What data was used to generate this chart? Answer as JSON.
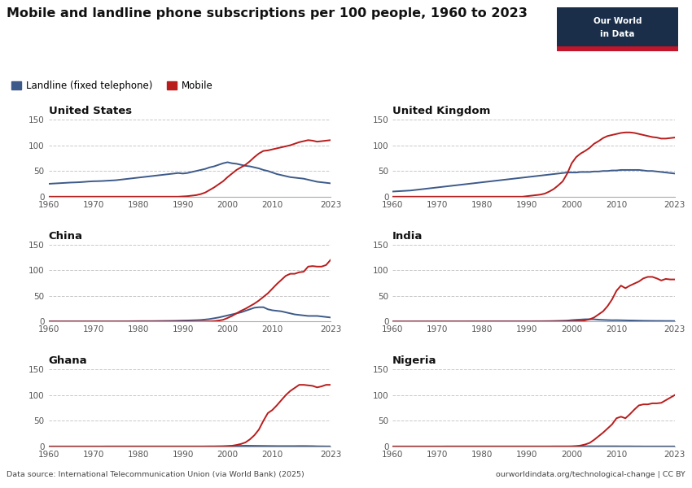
{
  "title": "Mobile and landline phone subscriptions per 100 people, 1960 to 2023",
  "datasource": "Data source: International Telecommunication Union (via World Bank) (2025)",
  "url": "ourworldindata.org/technological-change | CC BY",
  "legend_landline": "Landline (fixed telephone)",
  "legend_mobile": "Mobile",
  "landline_color": "#3d5a8a",
  "mobile_color": "#b91c1c",
  "bg_color": "#ffffff",
  "grid_color": "#c8c8c8",
  "logo_bg": "#1a2e4a",
  "logo_red": "#c0152a",
  "ylim": [
    0,
    150
  ],
  "yticks": [
    0,
    50,
    100,
    150
  ],
  "xticks": [
    1960,
    1970,
    1980,
    1990,
    2000,
    2010,
    2023
  ],
  "countries": [
    "United States",
    "United Kingdom",
    "China",
    "India",
    "Ghana",
    "Nigeria"
  ],
  "years": [
    1960,
    1961,
    1962,
    1963,
    1964,
    1965,
    1966,
    1967,
    1968,
    1969,
    1970,
    1971,
    1972,
    1973,
    1974,
    1975,
    1976,
    1977,
    1978,
    1979,
    1980,
    1981,
    1982,
    1983,
    1984,
    1985,
    1986,
    1987,
    1988,
    1989,
    1990,
    1991,
    1992,
    1993,
    1994,
    1995,
    1996,
    1997,
    1998,
    1999,
    2000,
    2001,
    2002,
    2003,
    2004,
    2005,
    2006,
    2007,
    2008,
    2009,
    2010,
    2011,
    2012,
    2013,
    2014,
    2015,
    2016,
    2017,
    2018,
    2019,
    2020,
    2021,
    2022,
    2023
  ],
  "data": {
    "United States": {
      "landline": [
        25,
        25.5,
        26,
        26.5,
        27,
        27.5,
        27.8,
        28.2,
        28.8,
        29.5,
        30,
        30.2,
        30.5,
        31,
        31.5,
        32,
        33,
        34,
        35,
        36,
        37,
        38,
        39,
        40,
        41,
        42,
        43,
        44,
        45,
        46,
        45,
        46,
        48,
        50,
        52,
        54,
        57,
        59,
        62,
        65,
        67,
        65,
        64,
        62,
        60,
        59,
        57,
        55,
        52,
        50,
        47,
        44,
        42,
        40,
        38,
        37,
        36,
        35,
        33,
        31,
        29,
        28,
        27,
        26
      ],
      "mobile": [
        0,
        0,
        0,
        0,
        0,
        0,
        0,
        0,
        0,
        0,
        0,
        0,
        0,
        0,
        0,
        0,
        0,
        0,
        0,
        0,
        0,
        0,
        0,
        0,
        0,
        0,
        0,
        0,
        0,
        0,
        0.5,
        1,
        2,
        3,
        5,
        8,
        13,
        18,
        24,
        30,
        38,
        45,
        52,
        57,
        62,
        69,
        77,
        84,
        89,
        90,
        92,
        94,
        96,
        98,
        100,
        103,
        106,
        108,
        110,
        109,
        107,
        108,
        109,
        110
      ]
    },
    "United Kingdom": {
      "landline": [
        10,
        10.5,
        11,
        11.5,
        12,
        13,
        14,
        15,
        16,
        17,
        18,
        19,
        20,
        21,
        22,
        23,
        24,
        25,
        26,
        27,
        28,
        29,
        30,
        31,
        32,
        33,
        34,
        35,
        36,
        37,
        38,
        39,
        40,
        41,
        42,
        43,
        44,
        45,
        46,
        47,
        47,
        47,
        48,
        48,
        48,
        49,
        49,
        50,
        50,
        51,
        51,
        52,
        52,
        52,
        52,
        52,
        51,
        50,
        50,
        49,
        48,
        47,
        46,
        45
      ],
      "mobile": [
        0,
        0,
        0,
        0,
        0,
        0,
        0,
        0,
        0,
        0,
        0,
        0,
        0,
        0,
        0,
        0,
        0,
        0,
        0,
        0,
        0,
        0,
        0,
        0,
        0,
        0,
        0,
        0,
        0,
        0,
        1,
        2,
        3,
        4,
        6,
        10,
        15,
        22,
        30,
        45,
        65,
        77,
        84,
        89,
        95,
        103,
        108,
        114,
        118,
        120,
        122,
        124,
        125,
        125,
        124,
        122,
        120,
        118,
        116,
        115,
        113,
        113,
        114,
        115
      ]
    },
    "China": {
      "landline": [
        0.5,
        0.5,
        0.5,
        0.5,
        0.5,
        0.5,
        0.5,
        0.5,
        0.5,
        0.5,
        0.5,
        0.5,
        0.5,
        0.5,
        0.5,
        0.5,
        0.6,
        0.6,
        0.7,
        0.8,
        0.9,
        1.0,
        1.0,
        1.0,
        1.1,
        1.2,
        1.3,
        1.4,
        1.5,
        1.7,
        2.0,
        2.2,
        2.5,
        2.8,
        3.2,
        4.0,
        5.0,
        6.5,
        8.0,
        10.0,
        12,
        14,
        16,
        18,
        21,
        24,
        27,
        28,
        28,
        24,
        22,
        21,
        20,
        18,
        16,
        14,
        13,
        12,
        11,
        11,
        11,
        10,
        9,
        8
      ],
      "mobile": [
        0,
        0,
        0,
        0,
        0,
        0,
        0,
        0,
        0,
        0,
        0,
        0,
        0,
        0,
        0,
        0,
        0,
        0,
        0,
        0,
        0,
        0,
        0,
        0,
        0,
        0,
        0,
        0,
        0,
        0,
        0,
        0,
        0,
        0,
        0.1,
        0.2,
        0.5,
        1.0,
        2.0,
        3.5,
        7,
        11,
        16,
        21,
        25,
        30,
        35,
        41,
        48,
        55,
        64,
        73,
        81,
        89,
        93,
        93,
        96,
        97,
        107,
        108,
        107,
        107,
        110,
        120
      ]
    },
    "India": {
      "landline": [
        0.3,
        0.3,
        0.3,
        0.3,
        0.3,
        0.4,
        0.4,
        0.4,
        0.4,
        0.5,
        0.5,
        0.5,
        0.5,
        0.5,
        0.5,
        0.5,
        0.5,
        0.6,
        0.6,
        0.6,
        0.6,
        0.7,
        0.7,
        0.7,
        0.7,
        0.7,
        0.7,
        0.7,
        0.7,
        0.7,
        0.7,
        0.7,
        0.8,
        0.8,
        0.9,
        1.0,
        1.2,
        1.4,
        1.7,
        2.0,
        2.9,
        3.5,
        4.0,
        4.5,
        4.6,
        4.5,
        3.7,
        3.3,
        3.0,
        2.7,
        2.8,
        2.6,
        2.4,
        2.2,
        2.0,
        1.8,
        1.6,
        1.5,
        1.4,
        1.3,
        1.3,
        1.2,
        1.2,
        1.1
      ],
      "mobile": [
        0,
        0,
        0,
        0,
        0,
        0,
        0,
        0,
        0,
        0,
        0,
        0,
        0,
        0,
        0,
        0,
        0,
        0,
        0,
        0,
        0,
        0,
        0,
        0,
        0,
        0,
        0,
        0,
        0,
        0,
        0,
        0,
        0,
        0,
        0,
        0.1,
        0.1,
        0.2,
        0.2,
        0.3,
        0.4,
        0.7,
        1.2,
        2.5,
        4.5,
        8,
        14,
        20,
        30,
        43,
        60,
        70,
        65,
        70,
        74,
        78,
        84,
        87,
        87,
        84,
        80,
        83,
        82,
        82
      ]
    },
    "Ghana": {
      "landline": [
        0.2,
        0.2,
        0.2,
        0.2,
        0.2,
        0.2,
        0.2,
        0.2,
        0.2,
        0.2,
        0.2,
        0.2,
        0.2,
        0.3,
        0.3,
        0.3,
        0.3,
        0.3,
        0.3,
        0.3,
        0.3,
        0.3,
        0.3,
        0.3,
        0.3,
        0.3,
        0.3,
        0.3,
        0.3,
        0.3,
        0.3,
        0.3,
        0.3,
        0.3,
        0.3,
        0.3,
        0.4,
        0.4,
        0.5,
        0.5,
        0.7,
        1.0,
        1.2,
        1.4,
        1.6,
        1.5,
        1.4,
        1.3,
        1.2,
        1.1,
        1.0,
        0.9,
        0.9,
        0.9,
        0.9,
        0.9,
        1.0,
        1.0,
        0.9,
        0.8,
        0.5,
        0.4,
        0.3,
        0.3
      ],
      "mobile": [
        0,
        0,
        0,
        0,
        0,
        0,
        0,
        0,
        0,
        0,
        0,
        0,
        0,
        0,
        0,
        0,
        0,
        0,
        0,
        0,
        0,
        0,
        0,
        0,
        0,
        0,
        0,
        0,
        0,
        0,
        0,
        0,
        0,
        0,
        0,
        0.1,
        0.1,
        0.1,
        0.2,
        0.4,
        0.8,
        1.5,
        3.0,
        5.0,
        8.0,
        14,
        22,
        33,
        50,
        65,
        71,
        80,
        90,
        100,
        108,
        114,
        120,
        120,
        119,
        118,
        115,
        117,
        120,
        120
      ]
    },
    "Nigeria": {
      "landline": [
        0.2,
        0.2,
        0.2,
        0.2,
        0.2,
        0.2,
        0.2,
        0.2,
        0.2,
        0.2,
        0.2,
        0.2,
        0.3,
        0.3,
        0.3,
        0.3,
        0.3,
        0.3,
        0.3,
        0.3,
        0.3,
        0.3,
        0.3,
        0.3,
        0.3,
        0.3,
        0.3,
        0.3,
        0.3,
        0.3,
        0.3,
        0.3,
        0.3,
        0.3,
        0.3,
        0.3,
        0.4,
        0.4,
        0.4,
        0.4,
        0.4,
        0.5,
        0.5,
        0.6,
        0.6,
        0.5,
        0.5,
        0.5,
        0.5,
        0.5,
        0.5,
        0.4,
        0.4,
        0.4,
        0.3,
        0.3,
        0.2,
        0.2,
        0.2,
        0.2,
        0.2,
        0.2,
        0.2,
        0.2
      ],
      "mobile": [
        0,
        0,
        0,
        0,
        0,
        0,
        0,
        0,
        0,
        0,
        0,
        0,
        0,
        0,
        0,
        0,
        0,
        0,
        0,
        0,
        0,
        0,
        0,
        0,
        0,
        0,
        0,
        0,
        0,
        0,
        0,
        0,
        0,
        0,
        0,
        0,
        0,
        0,
        0,
        0,
        0.2,
        0.8,
        2.0,
        4.0,
        7.0,
        13,
        20,
        27,
        35,
        43,
        55,
        58,
        55,
        63,
        72,
        80,
        82,
        82,
        84,
        84,
        85,
        90,
        95,
        100
      ]
    }
  }
}
